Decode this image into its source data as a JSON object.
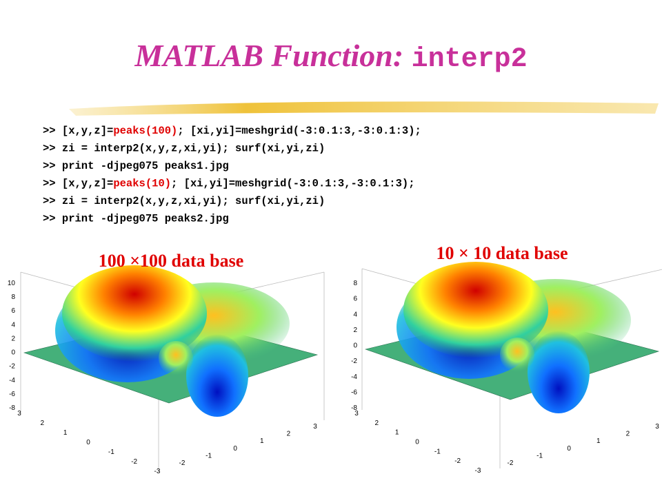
{
  "title": {
    "main": "MATLAB Function:",
    "code": "interp2"
  },
  "code": [
    [
      {
        "text": ">> [x,y,z]=",
        "color": "#000000"
      },
      {
        "text": "peaks(100)",
        "color": "#e00000"
      },
      {
        "text": "; [xi,yi]=meshgrid(-3:0.1:3,-3:0.1:3);",
        "color": "#000000"
      }
    ],
    [
      {
        "text": ">> zi = interp2(x,y,z,xi,yi); surf(xi,yi,zi)",
        "color": "#000000"
      }
    ],
    [
      {
        "text": ">> print -djpeg075 peaks1.jpg",
        "color": "#000000"
      }
    ],
    [
      {
        "text": ">> [x,y,z]=",
        "color": "#000000"
      },
      {
        "text": "peaks(10)",
        "color": "#e00000"
      },
      {
        "text": "; [xi,yi]=meshgrid(-3:0.1:3,-3:0.1:3);",
        "color": "#000000"
      }
    ],
    [
      {
        "text": ">> zi = interp2(x,y,z,xi,yi); surf(xi,yi,zi)",
        "color": "#000000"
      }
    ],
    [
      {
        "text": ">> print -djpeg075 peaks2.jpg",
        "color": "#000000"
      }
    ]
  ],
  "figures": [
    {
      "label": "100 ×100 data base",
      "zticks": [
        10,
        8,
        6,
        4,
        2,
        0,
        -2,
        -4,
        -6,
        -8
      ],
      "yticks": [
        3,
        2,
        1,
        0,
        -1,
        -2,
        -3
      ],
      "xticks": [
        -2,
        -1,
        0,
        1,
        2,
        3
      ]
    },
    {
      "label": "10 × 10 data base",
      "zticks": [
        8,
        6,
        4,
        2,
        0,
        -2,
        -4,
        -6,
        -8
      ],
      "yticks": [
        3,
        2,
        1,
        0,
        -1,
        -2,
        -3
      ],
      "xticks": [
        -2,
        -1,
        0,
        1,
        2,
        3
      ]
    }
  ]
}
